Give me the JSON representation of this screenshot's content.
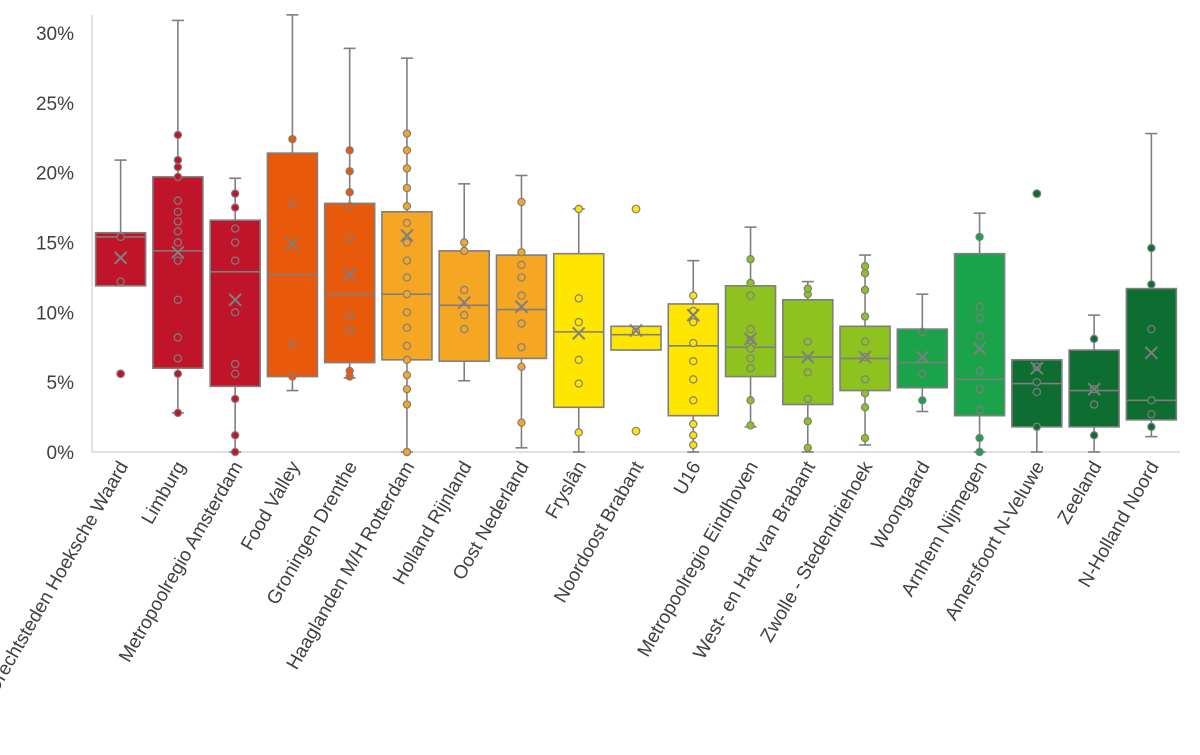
{
  "chart_data": {
    "type": "boxplot",
    "title": "",
    "xlabel": "",
    "ylabel": "",
    "ylim": [
      0,
      0.31
    ],
    "y_ticks": [
      {
        "value": 0.0,
        "label": "0%"
      },
      {
        "value": 0.05,
        "label": "5%"
      },
      {
        "value": 0.1,
        "label": "10%"
      },
      {
        "value": 0.15,
        "label": "15%"
      },
      {
        "value": 0.2,
        "label": "20%"
      },
      {
        "value": 0.25,
        "label": "25%"
      },
      {
        "value": 0.3,
        "label": "30%"
      }
    ],
    "colors": {
      "axis": "#d9d9d9",
      "line": "#7f7f7f",
      "text": "#404040"
    },
    "series": [
      {
        "name": "Drechtsteden Hoeksche Waard",
        "color": "#c0142a",
        "q1": 0.119,
        "median": 0.154,
        "q3": 0.157,
        "whisker_low": 0.119,
        "whisker_high": 0.209,
        "mean": 0.139,
        "points": [
          0.154,
          0.122
        ],
        "outliers": [
          0.056
        ]
      },
      {
        "name": "Limburg",
        "color": "#c0142a",
        "q1": 0.06,
        "median": 0.144,
        "q3": 0.197,
        "whisker_low": 0.028,
        "whisker_high": 0.309,
        "mean": 0.143,
        "points": [
          0.028,
          0.056,
          0.067,
          0.082,
          0.109,
          0.137,
          0.15,
          0.158,
          0.165,
          0.172,
          0.18,
          0.197,
          0.204,
          0.209,
          0.227
        ],
        "outliers": []
      },
      {
        "name": "Metropoolregio Amsterdam",
        "color": "#c0142a",
        "q1": 0.047,
        "median": 0.129,
        "q3": 0.166,
        "whisker_low": 0.0,
        "whisker_high": 0.196,
        "mean": 0.109,
        "points": [
          0.0,
          0.012,
          0.038,
          0.056,
          0.063,
          0.1,
          0.137,
          0.15,
          0.16,
          0.175,
          0.185
        ],
        "outliers": []
      },
      {
        "name": "Food Valley",
        "color": "#e8590c",
        "q1": 0.054,
        "median": 0.127,
        "q3": 0.214,
        "whisker_low": 0.044,
        "whisker_high": 0.313,
        "mean": 0.149,
        "points": [
          0.054,
          0.077,
          0.178,
          0.224
        ],
        "outliers": []
      },
      {
        "name": "Groningen Drenthe",
        "color": "#e8590c",
        "q1": 0.064,
        "median": 0.113,
        "q3": 0.178,
        "whisker_low": 0.053,
        "whisker_high": 0.289,
        "mean": 0.127,
        "points": [
          0.054,
          0.058,
          0.087,
          0.098,
          0.153,
          0.176,
          0.186,
          0.201,
          0.216
        ],
        "outliers": []
      },
      {
        "name": "Haaglanden M/H Rotterdam",
        "color": "#f5a623",
        "q1": 0.066,
        "median": 0.113,
        "q3": 0.172,
        "whisker_low": 0.0,
        "whisker_high": 0.282,
        "mean": 0.155,
        "points": [
          0.0,
          0.034,
          0.045,
          0.055,
          0.066,
          0.076,
          0.089,
          0.1,
          0.113,
          0.125,
          0.137,
          0.15,
          0.164,
          0.176,
          0.189,
          0.203,
          0.216,
          0.228
        ],
        "outliers": []
      },
      {
        "name": "Holland Rijnland",
        "color": "#f5a623",
        "q1": 0.065,
        "median": 0.105,
        "q3": 0.144,
        "whisker_low": 0.051,
        "whisker_high": 0.192,
        "mean": 0.107,
        "points": [
          0.088,
          0.098,
          0.116,
          0.144,
          0.15
        ],
        "outliers": []
      },
      {
        "name": "Oost Nederland",
        "color": "#f5a623",
        "q1": 0.067,
        "median": 0.102,
        "q3": 0.141,
        "whisker_low": 0.003,
        "whisker_high": 0.198,
        "mean": 0.104,
        "points": [
          0.021,
          0.061,
          0.075,
          0.092,
          0.112,
          0.125,
          0.134,
          0.143,
          0.179
        ],
        "outliers": []
      },
      {
        "name": "Fryslân",
        "color": "#ffe600",
        "q1": 0.032,
        "median": 0.086,
        "q3": 0.142,
        "whisker_low": 0.0,
        "whisker_high": 0.174,
        "mean": 0.085,
        "points": [
          0.014,
          0.049,
          0.066,
          0.093,
          0.11,
          0.174
        ],
        "outliers": []
      },
      {
        "name": "Noordoost Brabant",
        "color": "#ffe600",
        "q1": 0.073,
        "median": 0.084,
        "q3": 0.09,
        "whisker_low": 0.073,
        "whisker_high": 0.09,
        "mean": 0.087,
        "points": [
          0.086
        ],
        "outliers": [
          0.015,
          0.174
        ]
      },
      {
        "name": "U16",
        "color": "#ffe600",
        "q1": 0.026,
        "median": 0.076,
        "q3": 0.106,
        "whisker_low": 0.0,
        "whisker_high": 0.137,
        "mean": 0.098,
        "points": [
          0.005,
          0.012,
          0.02,
          0.037,
          0.052,
          0.065,
          0.078,
          0.093,
          0.101,
          0.112
        ],
        "outliers": []
      },
      {
        "name": "Metropoolregio Eindhoven",
        "color": "#8dc21f",
        "q1": 0.054,
        "median": 0.075,
        "q3": 0.119,
        "whisker_low": 0.018,
        "whisker_high": 0.161,
        "mean": 0.081,
        "points": [
          0.019,
          0.037,
          0.06,
          0.067,
          0.074,
          0.08,
          0.088,
          0.112,
          0.121,
          0.138
        ],
        "outliers": []
      },
      {
        "name": "West- en Hart van Brabant",
        "color": "#8dc21f",
        "q1": 0.034,
        "median": 0.068,
        "q3": 0.109,
        "whisker_low": 0.0,
        "whisker_high": 0.122,
        "mean": 0.068,
        "points": [
          0.003,
          0.022,
          0.038,
          0.057,
          0.079,
          0.113,
          0.117
        ],
        "outliers": []
      },
      {
        "name": "Zwolle - Stedendriehoek",
        "color": "#8dc21f",
        "q1": 0.044,
        "median": 0.067,
        "q3": 0.09,
        "whisker_low": 0.005,
        "whisker_high": 0.141,
        "mean": 0.068,
        "points": [
          0.01,
          0.032,
          0.042,
          0.052,
          0.068,
          0.079,
          0.097,
          0.116,
          0.128,
          0.133
        ],
        "outliers": []
      },
      {
        "name": "Woongaard",
        "color": "#1aa34a",
        "q1": 0.046,
        "median": 0.064,
        "q3": 0.088,
        "whisker_low": 0.029,
        "whisker_high": 0.113,
        "mean": 0.068,
        "points": [
          0.037,
          0.056,
          0.086
        ],
        "outliers": []
      },
      {
        "name": "Arnhem Nijmegen",
        "color": "#1aa34a",
        "q1": 0.026,
        "median": 0.052,
        "q3": 0.142,
        "whisker_low": 0.0,
        "whisker_high": 0.171,
        "mean": 0.074,
        "points": [
          0.0,
          0.01,
          0.03,
          0.045,
          0.058,
          0.083,
          0.096,
          0.104,
          0.154
        ],
        "outliers": []
      },
      {
        "name": "Amersfoort N-Veluwe",
        "color": "#0e6e32",
        "q1": 0.018,
        "median": 0.049,
        "q3": 0.066,
        "whisker_low": 0.0,
        "whisker_high": 0.066,
        "mean": 0.06,
        "points": [
          0.018,
          0.043,
          0.05,
          0.061
        ],
        "outliers": [
          0.185
        ]
      },
      {
        "name": "Zeeland",
        "color": "#0e6e32",
        "q1": 0.018,
        "median": 0.044,
        "q3": 0.073,
        "whisker_low": 0.0,
        "whisker_high": 0.098,
        "mean": 0.045,
        "points": [
          0.012,
          0.034,
          0.045,
          0.081
        ],
        "outliers": []
      },
      {
        "name": "N-Holland Noord",
        "color": "#0e6e32",
        "q1": 0.023,
        "median": 0.037,
        "q3": 0.117,
        "whisker_low": 0.011,
        "whisker_high": 0.228,
        "mean": 0.071,
        "points": [
          0.018,
          0.027,
          0.037,
          0.088,
          0.12,
          0.146
        ],
        "outliers": []
      }
    ]
  }
}
